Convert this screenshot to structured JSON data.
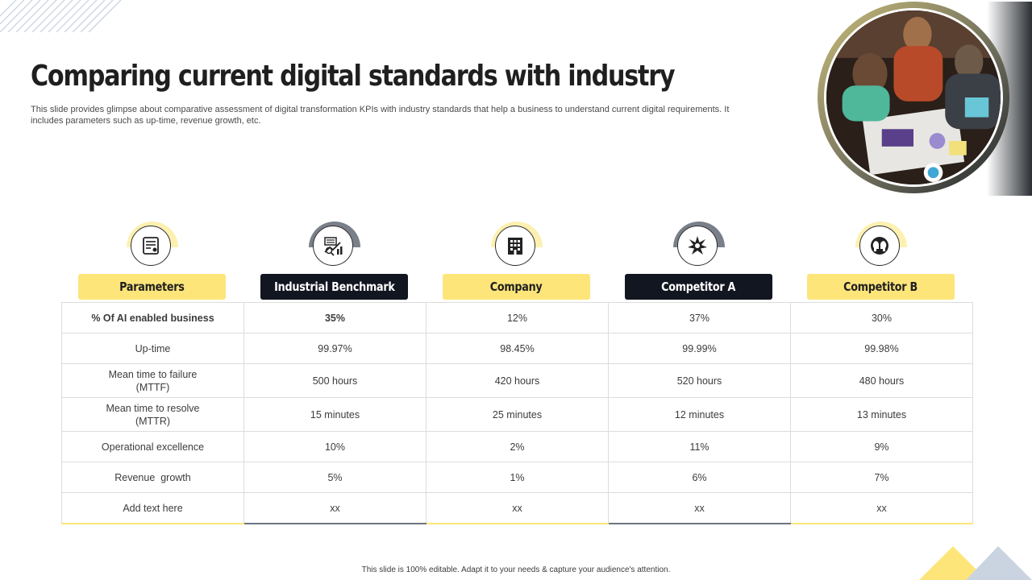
{
  "title": "Comparing current digital standards with industry",
  "subtitle": "This slide provides glimpse about comparative assessment of digital transformation KPIs with industry standards that help a business to understand current digital requirements. It includes parameters such as up-time, revenue growth, etc.",
  "columns": [
    {
      "label": "Parameters",
      "icon": "settings-panel-icon",
      "style": "yellow"
    },
    {
      "label": "Industrial Benchmark",
      "icon": "chart-analysis-icon",
      "style": "dark"
    },
    {
      "label": "Company",
      "icon": "building-icon",
      "style": "yellow"
    },
    {
      "label": "Competitor  A",
      "icon": "starburst-icon",
      "style": "dark"
    },
    {
      "label": "Competitor  B",
      "icon": "two-heads-icon",
      "style": "yellow"
    }
  ],
  "rows": [
    {
      "param": "% Of AI enabled business",
      "values": [
        "35%",
        "12%",
        "37%",
        "30%"
      ]
    },
    {
      "param": "Up-time",
      "values": [
        "99.97%",
        "98.45%",
        "99.99%",
        "99.98%"
      ]
    },
    {
      "param": "Mean time to failure (MTTF)",
      "values": [
        "500 hours",
        "420 hours",
        "520 hours",
        "480 hours"
      ]
    },
    {
      "param": "Mean time to resolve (MTTR)",
      "values": [
        "15 minutes",
        "25 minutes",
        "12 minutes",
        "13 minutes"
      ]
    },
    {
      "param": "Operational excellence",
      "values": [
        "10%",
        "2%",
        "11%",
        "9%"
      ]
    },
    {
      "param": "Revenue  growth",
      "values": [
        "5%",
        "1%",
        "6%",
        "7%"
      ]
    },
    {
      "param": "Add text here",
      "values": [
        "xx",
        "xx",
        "xx",
        "xx"
      ]
    }
  ],
  "footer": "This slide is 100% editable.  Adapt it to your needs & capture your audience's attention.",
  "colors": {
    "accent_yellow": "#fde57a",
    "accent_dark": "#121620",
    "gray": "#7a808a"
  }
}
